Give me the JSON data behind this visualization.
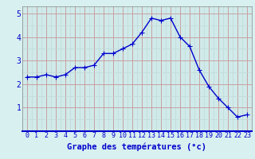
{
  "hours": [
    0,
    1,
    2,
    3,
    4,
    5,
    6,
    7,
    8,
    9,
    10,
    11,
    12,
    13,
    14,
    15,
    16,
    17,
    18,
    19,
    20,
    21,
    22,
    23
  ],
  "temps": [
    2.3,
    2.3,
    2.4,
    2.3,
    2.4,
    2.7,
    2.7,
    2.8,
    3.3,
    3.3,
    3.5,
    3.7,
    4.2,
    4.8,
    4.7,
    4.8,
    4.0,
    3.6,
    2.6,
    1.9,
    1.4,
    1.0,
    0.6,
    0.7
  ],
  "line_color": "#0000cc",
  "marker": "+",
  "marker_size": 4,
  "bg_color": "#d8f0f0",
  "plot_bg_color": "#d0eaea",
  "grid_color_major": "#c8a0a0",
  "grid_color_minor": "#c0d8d8",
  "xlabel": "Graphe des températures (°c)",
  "xlabel_fontsize": 7.5,
  "ylim": [
    0,
    5.3
  ],
  "yticks": [
    1,
    2,
    3,
    4,
    5
  ],
  "xtick_fontsize": 6,
  "ytick_fontsize": 7,
  "line_width": 1.0
}
